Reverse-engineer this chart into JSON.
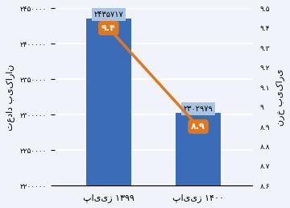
{
  "categories": [
    "پاییز ۱۳۹۹",
    "پاییز ۱۴۰۰"
  ],
  "bar_values": [
    24357170,
    23029790
  ],
  "bar_labels": [
    "۲۴۳۵۷۱۷",
    "۲۳۰۲۹۷۹"
  ],
  "line_values": [
    9.4,
    8.9
  ],
  "line_labels": [
    "۹.۴",
    "۸.۹"
  ],
  "bar_color": "#3b6cb7",
  "bar_label_bg": "#a8c4e0",
  "line_color": "#e07820",
  "line_marker_color": "#e07820",
  "ylabel_left": "تعداد بیکاران",
  "ylabel_right": "نرخ بیکاری",
  "ylim_left": [
    22000000,
    24500000
  ],
  "ylim_right": [
    8.6,
    9.5
  ],
  "yticks_left": [
    22000000,
    22500000,
    23000000,
    23500000,
    24000000,
    24500000
  ],
  "yticks_right": [
    8.6,
    8.7,
    8.8,
    8.9,
    9.0,
    9.1,
    9.2,
    9.3,
    9.4,
    9.5
  ],
  "ytick_labels_left": [
    "۲۲۰۰۰۰۰",
    "۲۲۵۰۰۰۰",
    "۲۳۰۰۰۰۰",
    "۲۳۵۰۰۰۰",
    "۲۴۰۰۰۰۰",
    "۲۴۵۰۰۰۰"
  ],
  "ytick_labels_right": [
    "۸.۶",
    "۸.۷",
    "۸.۸",
    "۸.۹",
    "۹",
    "۹.۱",
    "۹.۲",
    "۹.۳",
    "۹.۴",
    "۹.۵"
  ],
  "bg_color": "#f0f4fa",
  "grid_color": "#ffffff"
}
